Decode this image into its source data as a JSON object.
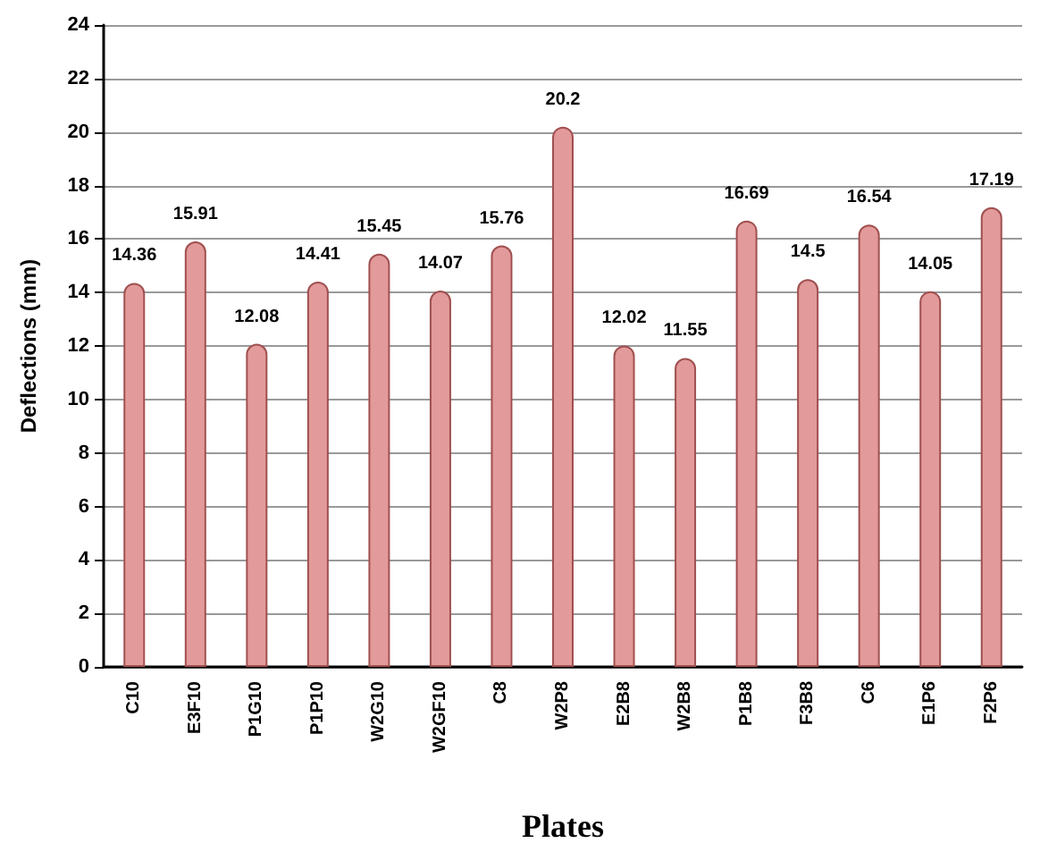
{
  "chart_data": {
    "type": "bar",
    "xlabel": "Plates",
    "ylabel": "Deflections (mm)",
    "categories": [
      "C10",
      "E3F10",
      "P1G10",
      "P1P10",
      "W2G10",
      "W2GF10",
      "C8",
      "W2P8",
      "E2B8",
      "W2B8",
      "P1B8",
      "F3B8",
      "C6",
      "E1P6",
      "F2P6"
    ],
    "values": [
      14.36,
      15.91,
      12.08,
      14.41,
      15.45,
      14.07,
      15.76,
      20.2,
      12.02,
      11.55,
      16.69,
      14.5,
      16.54,
      14.05,
      17.19
    ],
    "color": "#e39a9a",
    "ylim": [
      0,
      24
    ],
    "yticks": [
      0,
      2,
      4,
      6,
      8,
      10,
      12,
      14,
      16,
      18,
      20,
      22,
      24
    ],
    "grid": "y",
    "data_labels": true
  }
}
